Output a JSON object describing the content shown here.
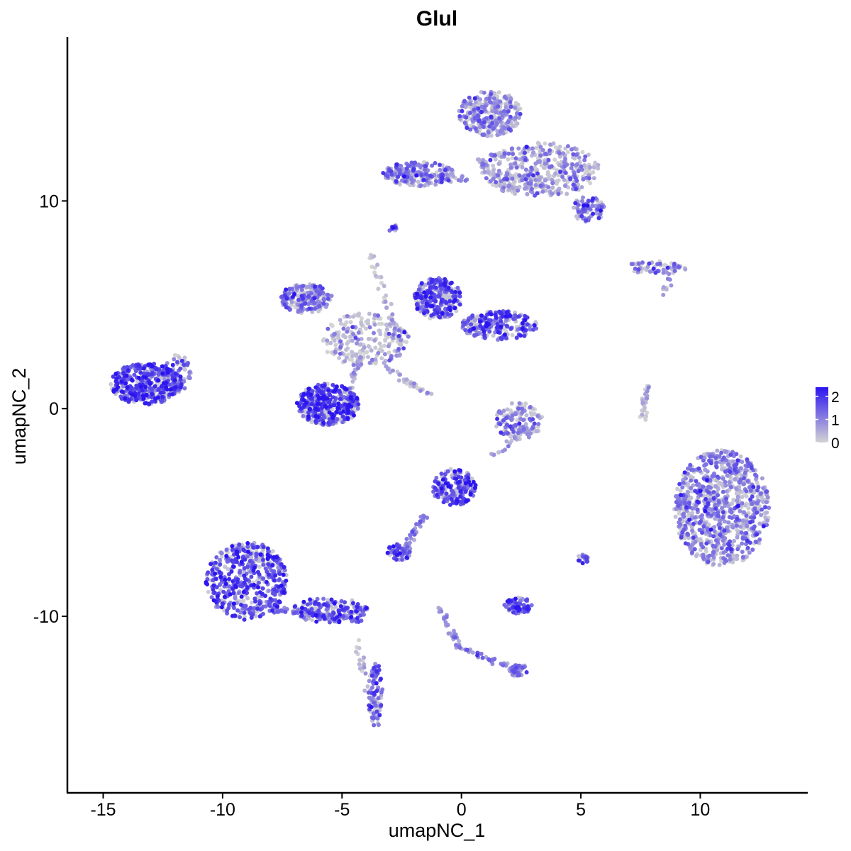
{
  "chart_data": {
    "type": "scatter",
    "title": "Glul",
    "xlabel": "umapNC_1",
    "ylabel": "umapNC_2",
    "xlim": [
      -16.5,
      14.5
    ],
    "ylim": [
      -18.5,
      17.9
    ],
    "x_ticks": [
      -15,
      -10,
      -5,
      0,
      5,
      10
    ],
    "x_tick_labels": [
      "-15",
      "-10",
      "-5",
      "0",
      "5",
      "10"
    ],
    "y_ticks": [
      -10,
      0,
      10
    ],
    "y_tick_labels": [
      "-10",
      "0",
      "10"
    ],
    "grid": false,
    "color_scale": {
      "low_color": "#d3d3d3",
      "high_color": "#2b14f0",
      "min": 0,
      "max": 2.4,
      "legend_ticks": [
        0,
        1,
        2
      ],
      "legend_labels": [
        "0",
        "1",
        "2"
      ],
      "legend_position": "right"
    },
    "clusters": [
      {
        "id": "left-blob",
        "cx": -13.2,
        "cy": 1.2,
        "rx": 1.5,
        "ry": 1.0,
        "n": 420,
        "expr": 1.7
      },
      {
        "id": "left-blob-arm",
        "cx": -11.9,
        "cy": 1.7,
        "rx": 0.6,
        "ry": 0.9,
        "n": 60,
        "expr": 1.2
      },
      {
        "id": "lower-left-blob",
        "cx": -9.0,
        "cy": -8.3,
        "rx": 1.7,
        "ry": 1.9,
        "n": 520,
        "expr": 1.6
      },
      {
        "id": "lower-left-arm",
        "cx": -5.5,
        "cy": -9.7,
        "rx": 1.6,
        "ry": 0.6,
        "n": 160,
        "expr": 1.5
      },
      {
        "id": "lower-left-tail",
        "cx": -3.6,
        "cy": -13.8,
        "rx": 0.3,
        "ry": 1.6,
        "n": 90,
        "expr": 1.4
      },
      {
        "id": "ring-cluster",
        "cx": -5.6,
        "cy": 0.2,
        "rx": 1.3,
        "ry": 1.0,
        "n": 380,
        "expr": 1.8
      },
      {
        "id": "center-upper",
        "cx": -1.0,
        "cy": 5.3,
        "rx": 1.0,
        "ry": 1.0,
        "n": 260,
        "expr": 1.6
      },
      {
        "id": "center-right-arm",
        "cx": 1.6,
        "cy": 4.0,
        "rx": 1.6,
        "ry": 0.7,
        "n": 240,
        "expr": 1.5
      },
      {
        "id": "upper-left-arm",
        "cx": -6.5,
        "cy": 5.3,
        "rx": 1.1,
        "ry": 0.7,
        "n": 200,
        "expr": 1.0
      },
      {
        "id": "center-web",
        "cx": -4.0,
        "cy": 3.3,
        "rx": 1.8,
        "ry": 1.3,
        "n": 220,
        "expr": 0.4
      },
      {
        "id": "top-right-upper",
        "cx": 1.2,
        "cy": 14.2,
        "rx": 1.3,
        "ry": 1.1,
        "n": 300,
        "expr": 0.8
      },
      {
        "id": "top-right-lower",
        "cx": 3.3,
        "cy": 11.5,
        "rx": 2.5,
        "ry": 1.3,
        "n": 420,
        "expr": 0.7
      },
      {
        "id": "top-left-arm",
        "cx": -1.8,
        "cy": 11.3,
        "rx": 1.5,
        "ry": 0.6,
        "n": 180,
        "expr": 1.2
      },
      {
        "id": "top-right-tip",
        "cx": 5.3,
        "cy": 9.6,
        "rx": 0.7,
        "ry": 0.6,
        "n": 80,
        "expr": 1.2
      },
      {
        "id": "right-big",
        "cx": 10.9,
        "cy": -4.8,
        "rx": 2.0,
        "ry": 2.8,
        "n": 900,
        "expr": 0.9
      },
      {
        "id": "mid-cluster-a",
        "cx": -0.3,
        "cy": -3.8,
        "rx": 0.9,
        "ry": 0.9,
        "n": 190,
        "expr": 1.6
      },
      {
        "id": "mid-cluster-b",
        "cx": -2.6,
        "cy": -6.9,
        "rx": 0.5,
        "ry": 0.4,
        "n": 60,
        "expr": 1.4
      },
      {
        "id": "mid-right-small",
        "cx": 2.4,
        "cy": -0.6,
        "rx": 1.0,
        "ry": 0.9,
        "n": 130,
        "expr": 0.9
      },
      {
        "id": "mid-right-lower",
        "cx": 2.4,
        "cy": -9.5,
        "rx": 0.6,
        "ry": 0.4,
        "n": 80,
        "expr": 1.5
      },
      {
        "id": "small-tail",
        "cx": 2.4,
        "cy": -12.6,
        "rx": 0.4,
        "ry": 0.3,
        "n": 40,
        "expr": 1.2
      },
      {
        "id": "right-streak",
        "cx": 8.2,
        "cy": 6.8,
        "rx": 1.3,
        "ry": 0.3,
        "n": 60,
        "expr": 0.8
      },
      {
        "id": "tiny-5-7",
        "cx": 5.1,
        "cy": -7.2,
        "rx": 0.25,
        "ry": 0.25,
        "n": 20,
        "expr": 1.4
      },
      {
        "id": "tiny-upper",
        "cx": -2.9,
        "cy": 8.7,
        "rx": 0.2,
        "ry": 0.2,
        "n": 12,
        "expr": 2.0
      }
    ],
    "streaks": [
      {
        "from": [
          -2.6,
          11.4
        ],
        "to": [
          0.2,
          11.0
        ],
        "n": 50,
        "expr": 0.6
      },
      {
        "from": [
          -3.8,
          7.4
        ],
        "to": [
          -2.6,
          3.2
        ],
        "n": 40,
        "expr": 0.2
      },
      {
        "from": [
          -4.2,
          2.5
        ],
        "to": [
          -4.9,
          0.5
        ],
        "n": 30,
        "expr": 0.6
      },
      {
        "from": [
          -3.2,
          2.0
        ],
        "to": [
          -1.3,
          0.6
        ],
        "n": 30,
        "expr": 0.3
      },
      {
        "from": [
          -8.0,
          -9.6
        ],
        "to": [
          -4.2,
          -10.2
        ],
        "n": 60,
        "expr": 1.2
      },
      {
        "from": [
          -4.5,
          -11.2
        ],
        "to": [
          -3.7,
          -14.0
        ],
        "n": 25,
        "expr": 0.5
      },
      {
        "from": [
          -1.5,
          -5.0
        ],
        "to": [
          -2.3,
          -6.6
        ],
        "n": 30,
        "expr": 1.0
      },
      {
        "from": [
          -0.9,
          -9.5
        ],
        "to": [
          -0.1,
          -11.5
        ],
        "n": 30,
        "expr": 0.8
      },
      {
        "from": [
          -0.1,
          -11.5
        ],
        "to": [
          2.4,
          -12.6
        ],
        "n": 35,
        "expr": 1.0
      },
      {
        "from": [
          1.3,
          -2.3
        ],
        "to": [
          2.6,
          -1.0
        ],
        "n": 20,
        "expr": 0.5
      },
      {
        "from": [
          7.8,
          1.2
        ],
        "to": [
          7.6,
          -0.7
        ],
        "n": 30,
        "expr": 0.1
      },
      {
        "from": [
          0.7,
          12.0
        ],
        "to": [
          2.2,
          10.5
        ],
        "n": 40,
        "expr": 0.3
      },
      {
        "from": [
          8.8,
          6.4
        ],
        "to": [
          8.4,
          5.6
        ],
        "n": 10,
        "expr": 0.5
      }
    ]
  }
}
